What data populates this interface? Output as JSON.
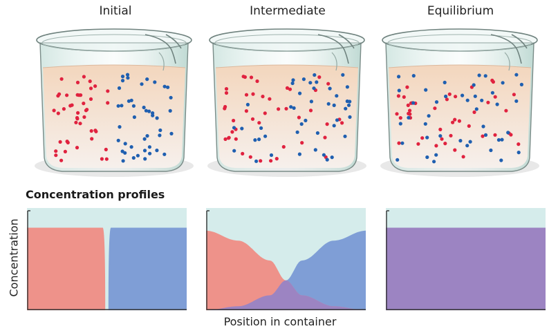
{
  "stages": [
    {
      "title": "Initial",
      "mode": "separated"
    },
    {
      "title": "Intermediate",
      "mode": "mixing"
    },
    {
      "title": "Equilibrium",
      "mode": "mixed"
    }
  ],
  "particles": {
    "per_color": 44,
    "red_color": "#e0223f",
    "blue_color": "#1f5fb0"
  },
  "section_title": "Concentration profiles",
  "axis": {
    "y_label": "Concentration",
    "x_label": "Position in container"
  },
  "colors": {
    "red_profile": "#ee928a",
    "blue_profile": "#7f9ed6",
    "mixed_profile": "#9c84c2",
    "profile_background": "#d5eceb",
    "liquid_top": "#f3d6bd",
    "liquid_bottom": "#f6f0ec"
  },
  "chart_data": [
    {
      "type": "area",
      "panel": "Initial",
      "xlabel": "Position in container",
      "ylabel": "Concentration",
      "x": [
        0,
        0.45,
        0.5,
        0.55,
        1
      ],
      "series": [
        {
          "values": [
            0.83,
            0.83,
            0,
            0,
            0
          ]
        },
        {
          "values": [
            0,
            0,
            0,
            0.83,
            0.83
          ]
        }
      ]
    },
    {
      "type": "area",
      "panel": "Intermediate",
      "xlabel": "Position in container",
      "ylabel": "Concentration",
      "x": [
        0,
        0.2,
        0.4,
        0.5,
        0.6,
        0.8,
        1
      ],
      "series": [
        {
          "values": [
            0.8,
            0.7,
            0.5,
            0.3,
            0.15,
            0.04,
            0
          ]
        },
        {
          "values": [
            0,
            0.04,
            0.15,
            0.3,
            0.5,
            0.7,
            0.8
          ]
        }
      ]
    },
    {
      "type": "area",
      "panel": "Equilibrium",
      "xlabel": "Position in container",
      "ylabel": "Concentration",
      "x": [
        0,
        1
      ],
      "series": [
        {
          "values": [
            0.83,
            0.83
          ]
        }
      ]
    }
  ]
}
